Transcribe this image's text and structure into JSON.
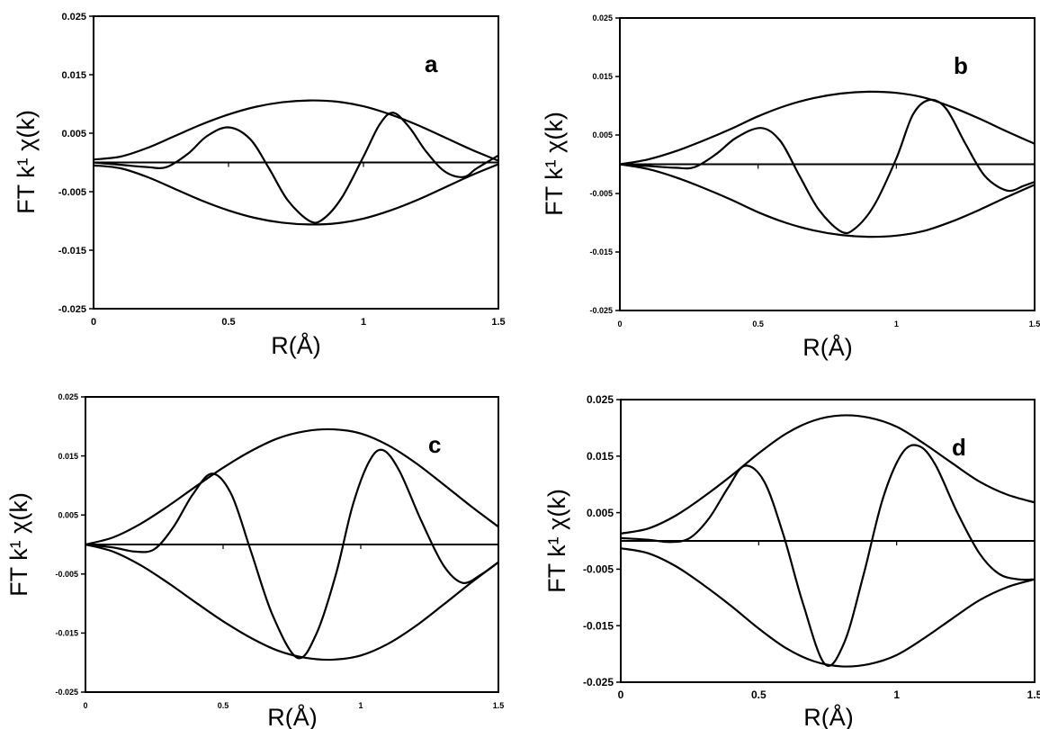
{
  "chart_data": [
    {
      "panel": "a",
      "type": "line",
      "xlabel": "R(Å)",
      "ylabel": "FT k¹ χ(k)",
      "xlim": [
        0,
        1.5
      ],
      "ylim": [
        -0.025,
        0.025
      ],
      "xticks": [
        "0",
        "0.5",
        "1",
        "1.5"
      ],
      "yticks": [
        "0.025",
        "0.015",
        "0.005",
        "-0.005",
        "-0.015",
        "-0.025"
      ],
      "series": [
        {
          "x": [
            0,
            0.1,
            0.2,
            0.3,
            0.4,
            0.5,
            0.6,
            0.7,
            0.8,
            0.9,
            1.0,
            1.1,
            1.2,
            1.3,
            1.4,
            1.5
          ],
          "y": [
            0.0005,
            0.001,
            0.0025,
            0.0045,
            0.0065,
            0.0082,
            0.0095,
            0.0103,
            0.0106,
            0.0104,
            0.0096,
            0.0082,
            0.0064,
            0.0043,
            0.0022,
            0.0003
          ]
        },
        {
          "x": [
            0,
            0.1,
            0.2,
            0.3,
            0.4,
            0.5,
            0.6,
            0.7,
            0.8,
            0.9,
            1.0,
            1.1,
            1.2,
            1.3,
            1.4,
            1.5
          ],
          "y": [
            -0.0005,
            -0.001,
            -0.0025,
            -0.0045,
            -0.0065,
            -0.0082,
            -0.0095,
            -0.0103,
            -0.0106,
            -0.0104,
            -0.0096,
            -0.0082,
            -0.0064,
            -0.0043,
            -0.0022,
            -0.0003
          ]
        },
        {
          "x": [
            0,
            0.1,
            0.2,
            0.27,
            0.35,
            0.42,
            0.5,
            0.58,
            0.65,
            0.72,
            0.8,
            0.85,
            0.92,
            1.0,
            1.06,
            1.11,
            1.17,
            1.23,
            1.3,
            1.37,
            1.42,
            1.5
          ],
          "y": [
            0,
            -0.0004,
            -0.0008,
            -0.0008,
            0.0015,
            0.0045,
            0.006,
            0.004,
            -0.001,
            -0.0065,
            -0.01,
            -0.0097,
            -0.006,
            0.001,
            0.0065,
            0.0085,
            0.006,
            0.002,
            -0.0015,
            -0.0025,
            -0.001,
            0.0012
          ]
        }
      ],
      "horizontal_line": 0
    },
    {
      "panel": "b",
      "type": "line",
      "xlabel": "R(Å)",
      "ylabel": "FT k¹ χ(k)",
      "xlim": [
        0,
        1.5
      ],
      "ylim": [
        -0.025,
        0.025
      ],
      "xticks": [
        "0",
        "0.5",
        "1",
        "1.5"
      ],
      "yticks": [
        "0.025",
        "0.015",
        "0.005",
        "-0.005",
        "-0.015",
        "-0.025"
      ],
      "series": [
        {
          "x": [
            0,
            0.1,
            0.2,
            0.3,
            0.4,
            0.5,
            0.6,
            0.7,
            0.8,
            0.9,
            1.0,
            1.1,
            1.2,
            1.3,
            1.4,
            1.5
          ],
          "y": [
            0,
            0.0008,
            0.0022,
            0.004,
            0.006,
            0.0082,
            0.01,
            0.0113,
            0.0121,
            0.0124,
            0.0122,
            0.0114,
            0.0098,
            0.0078,
            0.0056,
            0.0035
          ]
        },
        {
          "x": [
            0,
            0.1,
            0.2,
            0.3,
            0.4,
            0.5,
            0.6,
            0.7,
            0.8,
            0.9,
            1.0,
            1.1,
            1.2,
            1.3,
            1.4,
            1.5
          ],
          "y": [
            0,
            -0.0008,
            -0.0022,
            -0.004,
            -0.006,
            -0.0082,
            -0.01,
            -0.0113,
            -0.0121,
            -0.0124,
            -0.0122,
            -0.0114,
            -0.0098,
            -0.0078,
            -0.0056,
            -0.0035
          ]
        },
        {
          "x": [
            0,
            0.1,
            0.2,
            0.27,
            0.35,
            0.42,
            0.51,
            0.58,
            0.65,
            0.72,
            0.8,
            0.85,
            0.92,
            1.0,
            1.06,
            1.12,
            1.18,
            1.25,
            1.32,
            1.4,
            1.46,
            1.5
          ],
          "y": [
            0,
            -0.0003,
            -0.0006,
            -0.0005,
            0.0018,
            0.0045,
            0.0062,
            0.004,
            -0.002,
            -0.0078,
            -0.0115,
            -0.011,
            -0.007,
            0.001,
            0.0085,
            0.011,
            0.0095,
            0.0035,
            -0.002,
            -0.0045,
            -0.0037,
            -0.003
          ]
        }
      ],
      "horizontal_line": 0
    },
    {
      "panel": "c",
      "type": "line",
      "xlabel": "R(Å)",
      "ylabel": "FT k¹ χ(k)",
      "xlim": [
        0,
        1.5
      ],
      "ylim": [
        -0.025,
        0.025
      ],
      "xticks": [
        "0",
        "0.5",
        "1",
        "1.5"
      ],
      "yticks": [
        "0.025",
        "0.015",
        "0.005",
        "-0.005",
        "-0.015",
        "-0.025"
      ],
      "series": [
        {
          "x": [
            0,
            0.1,
            0.2,
            0.3,
            0.4,
            0.5,
            0.6,
            0.7,
            0.8,
            0.9,
            1.0,
            1.1,
            1.2,
            1.3,
            1.4,
            1.5
          ],
          "y": [
            0,
            0.0012,
            0.0035,
            0.0065,
            0.0098,
            0.013,
            0.0158,
            0.018,
            0.0192,
            0.0195,
            0.0188,
            0.0168,
            0.0138,
            0.0102,
            0.0065,
            0.003
          ]
        },
        {
          "x": [
            0,
            0.1,
            0.2,
            0.3,
            0.4,
            0.5,
            0.6,
            0.7,
            0.8,
            0.9,
            1.0,
            1.1,
            1.2,
            1.3,
            1.4,
            1.5
          ],
          "y": [
            0,
            -0.0012,
            -0.0035,
            -0.0065,
            -0.0098,
            -0.013,
            -0.0158,
            -0.018,
            -0.0192,
            -0.0195,
            -0.0188,
            -0.0168,
            -0.0138,
            -0.0102,
            -0.0065,
            -0.003
          ]
        },
        {
          "x": [
            0,
            0.1,
            0.18,
            0.25,
            0.32,
            0.39,
            0.46,
            0.53,
            0.6,
            0.68,
            0.77,
            0.84,
            0.91,
            0.97,
            1.03,
            1.08,
            1.14,
            1.22,
            1.3,
            1.37,
            1.44,
            1.5
          ],
          "y": [
            0,
            -0.0005,
            -0.0012,
            -0.0008,
            0.003,
            0.0085,
            0.012,
            0.0085,
            -0.001,
            -0.012,
            -0.0192,
            -0.015,
            -0.005,
            0.0065,
            0.014,
            0.016,
            0.0125,
            0.004,
            -0.0035,
            -0.0065,
            -0.005,
            -0.003
          ]
        }
      ],
      "horizontal_line": 0
    },
    {
      "panel": "d",
      "type": "line",
      "xlabel": "R(Å)",
      "ylabel": "FT k¹ χ(k)",
      "xlim": [
        0,
        1.5
      ],
      "ylim": [
        -0.025,
        0.025
      ],
      "xticks": [
        "0",
        "0.5",
        "1",
        "1.5"
      ],
      "yticks": [
        "0.025",
        "0.015",
        "0.005",
        "-0.005",
        "-0.015",
        "-0.025"
      ],
      "series": [
        {
          "x": [
            0,
            0.1,
            0.2,
            0.3,
            0.4,
            0.5,
            0.6,
            0.7,
            0.8,
            0.9,
            1.0,
            1.1,
            1.2,
            1.3,
            1.4,
            1.5
          ],
          "y": [
            0.0013,
            0.0022,
            0.0045,
            0.0078,
            0.0115,
            0.0155,
            0.019,
            0.0213,
            0.0222,
            0.0218,
            0.0202,
            0.0172,
            0.0138,
            0.0105,
            0.0082,
            0.0068
          ]
        },
        {
          "x": [
            0,
            0.1,
            0.2,
            0.3,
            0.4,
            0.5,
            0.6,
            0.7,
            0.8,
            0.9,
            1.0,
            1.1,
            1.2,
            1.3,
            1.4,
            1.5
          ],
          "y": [
            -0.0013,
            -0.0022,
            -0.0045,
            -0.0078,
            -0.0115,
            -0.0155,
            -0.019,
            -0.0213,
            -0.0222,
            -0.0218,
            -0.0202,
            -0.0172,
            -0.0138,
            -0.0105,
            -0.0082,
            -0.0068
          ]
        },
        {
          "x": [
            0,
            0.1,
            0.18,
            0.25,
            0.32,
            0.39,
            0.45,
            0.52,
            0.59,
            0.66,
            0.74,
            0.81,
            0.88,
            0.95,
            1.02,
            1.08,
            1.14,
            1.22,
            1.3,
            1.37,
            1.44,
            1.5
          ],
          "y": [
            0.0005,
            0.0002,
            -0.0002,
            0.0005,
            0.004,
            0.0095,
            0.0133,
            0.0105,
            0.001,
            -0.011,
            -0.0218,
            -0.018,
            -0.006,
            0.0075,
            0.0155,
            0.0168,
            0.0135,
            0.005,
            -0.0022,
            -0.0058,
            -0.0068,
            -0.0068
          ]
        }
      ],
      "horizontal_line": 0
    }
  ]
}
